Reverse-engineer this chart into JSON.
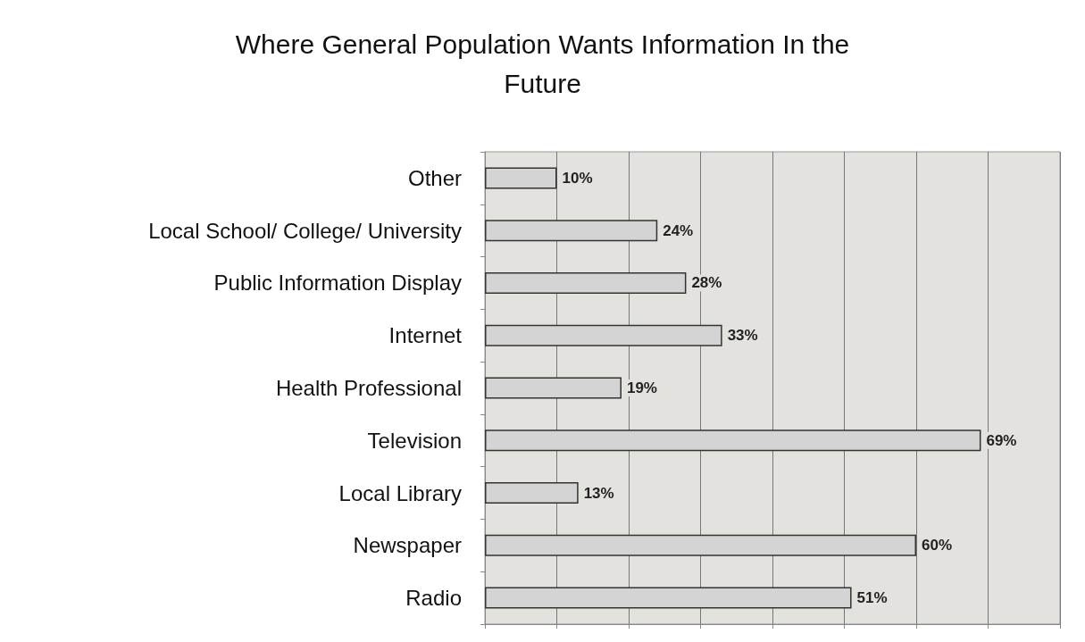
{
  "chart_data": {
    "type": "bar",
    "orientation": "horizontal",
    "title": "Where General Population Wants Information In the\nFuture",
    "categories": [
      "Other",
      "Local School/ College/ University",
      "Public Information Display",
      "Internet",
      "Health Professional",
      "Television",
      "Local Library",
      "Newspaper",
      "Radio"
    ],
    "values": [
      10,
      24,
      28,
      33,
      19,
      69,
      13,
      60,
      51
    ],
    "value_labels": [
      "10%",
      "24%",
      "28%",
      "33%",
      "19%",
      "69%",
      "13%",
      "60%",
      "51%"
    ],
    "color": "#d4d4d4",
    "xlim": [
      0,
      80
    ],
    "xticks": [
      {
        "value": 0,
        "label": null
      },
      {
        "value": 10,
        "label": null
      },
      {
        "value": 20,
        "label": null
      },
      {
        "value": 30,
        "label": null
      },
      {
        "value": 40,
        "label": null
      },
      {
        "value": 50,
        "label": null
      },
      {
        "value": 60,
        "label": null
      },
      {
        "value": 70,
        "label": null
      },
      {
        "value": 80,
        "label": null
      }
    ],
    "tick_labels": "y",
    "grid": "x"
  }
}
